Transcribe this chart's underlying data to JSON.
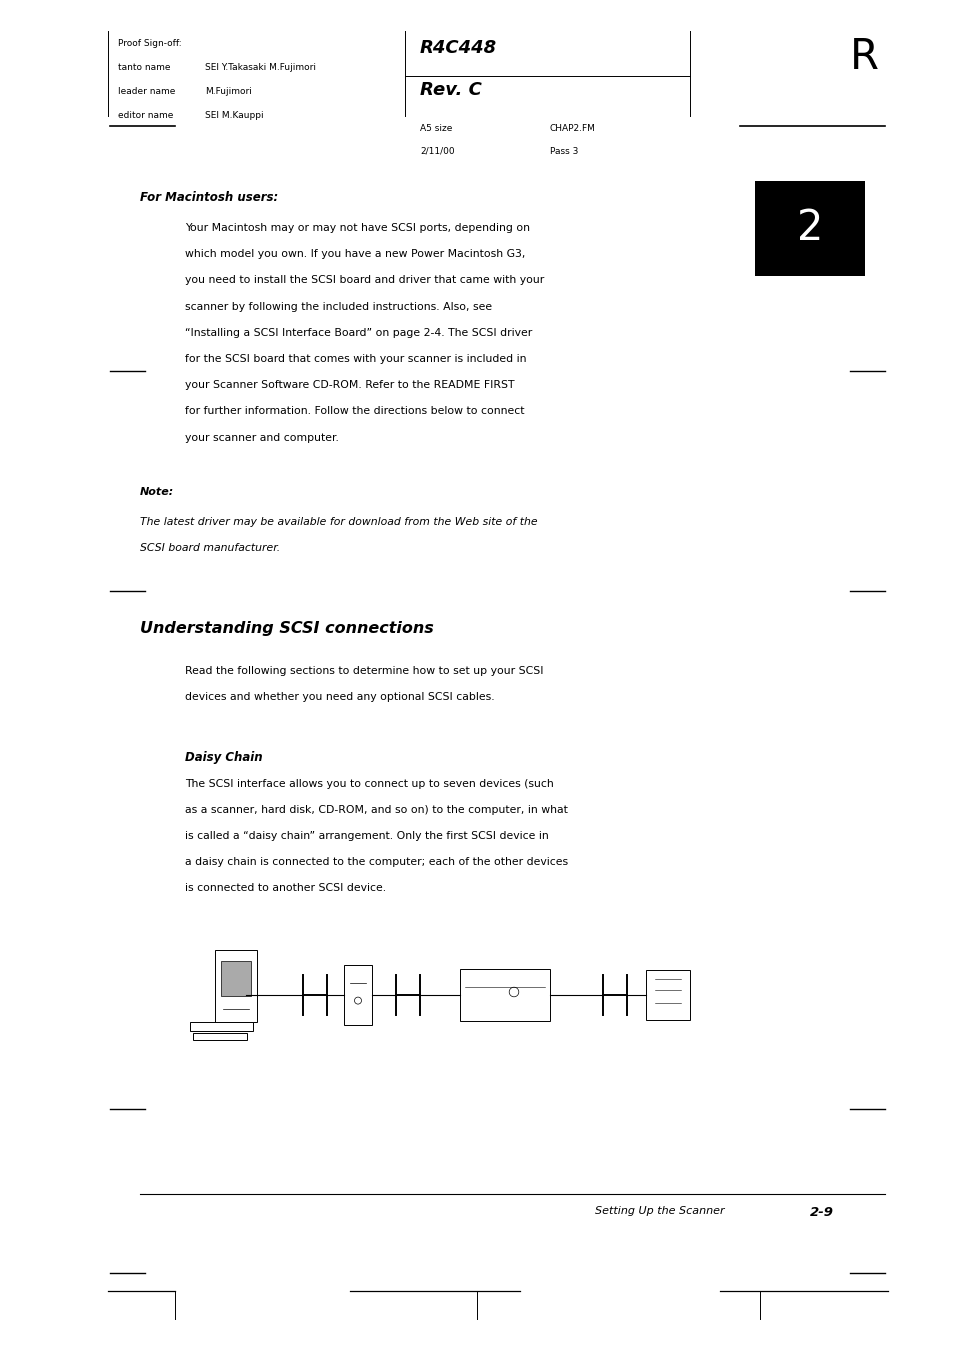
{
  "bg_color": "#ffffff",
  "text_color": "#000000",
  "page_width": 9.54,
  "page_height": 13.51,
  "proof_lines": [
    "Proof Sign-off:",
    "tanto name   SEI Y.Takasaki M.Fujimori",
    "leader name  M.Fujimori",
    "editor name  SEI M.Kauppi"
  ],
  "chapter_num": "2",
  "for_mac_heading": "For Macintosh users:",
  "body_paragraph1_lines": [
    "Your Macintosh may or may not have SCSI ports, depending on",
    "which model you own. If you have a new Power Macintosh G3,",
    "you need to install the SCSI board and driver that came with your",
    "scanner by following the included instructions. Also, see",
    "“Installing a SCSI Interface Board” on page 2-4. The SCSI driver",
    "for the SCSI board that comes with your scanner is included in",
    "your Scanner Software CD-ROM. Refer to the README FIRST",
    "for further information. Follow the directions below to connect",
    "your scanner and computer."
  ],
  "note_label": "Note:",
  "note_body_lines": [
    "The latest driver may be available for download from the Web site of the",
    "SCSI board manufacturer."
  ],
  "section2_heading": "Understanding SCSI connections",
  "section2_body_lines": [
    "Read the following sections to determine how to set up your SCSI",
    "devices and whether you need any optional SCSI cables."
  ],
  "subsection_label": "Daisy Chain",
  "subsection_body_lines": [
    "The SCSI interface allows you to connect up to seven devices (such",
    "as a scanner, hard disk, CD-ROM, and so on) to the computer, in what",
    "is called a “daisy chain” arrangement. Only the first SCSI device in",
    "a daisy chain is connected to the computer; each of the other devices",
    "is connected to another SCSI device."
  ],
  "footer_text": "Setting Up the Scanner",
  "footer_page": "2-9"
}
